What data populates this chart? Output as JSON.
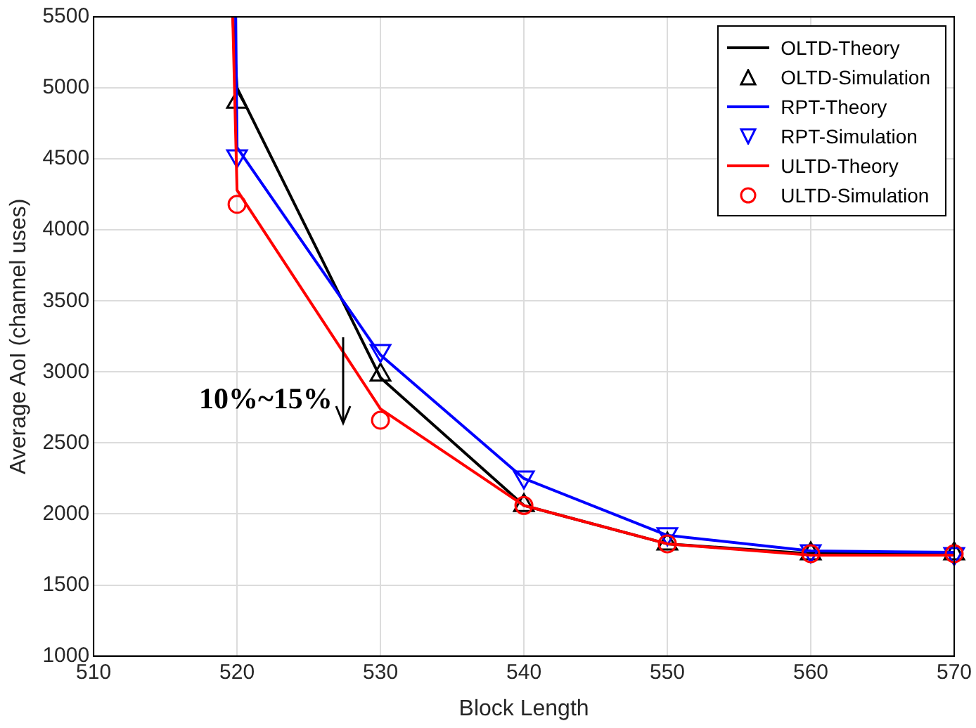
{
  "chart_data": {
    "type": "line",
    "xlabel": "Block Length",
    "ylabel": "Average AoI (channel uses)",
    "xlim": [
      510,
      570
    ],
    "xticks": [
      510,
      520,
      530,
      540,
      550,
      560,
      570
    ],
    "ylim": [
      1000,
      5500
    ],
    "yticks": [
      1000,
      1500,
      2000,
      2500,
      3000,
      3500,
      4000,
      4500,
      5000,
      5500
    ],
    "grid": true,
    "legend": "top right",
    "annotations": [
      "10%~15%"
    ],
    "series": [
      {
        "name": "OLTD-Theory",
        "type": "line",
        "color": "#000000",
        "x": [
          519.7,
          520,
          530,
          540,
          550,
          560,
          570
        ],
        "values": [
          5500,
          5000,
          2960,
          2060,
          1790,
          1720,
          1720
        ]
      },
      {
        "name": "OLTD-Simulation",
        "type": "scatter",
        "marker": "triangle",
        "color": "#000000",
        "x": [
          520,
          530,
          540,
          550,
          560,
          570
        ],
        "values": [
          4900,
          2980,
          2060,
          1790,
          1720,
          1720
        ]
      },
      {
        "name": "RPT-Theory",
        "type": "line",
        "color": "#0000ff",
        "x": [
          519.9,
          520,
          530,
          540,
          550,
          560,
          570
        ],
        "values": [
          5500,
          4580,
          3120,
          2250,
          1850,
          1740,
          1730
        ]
      },
      {
        "name": "RPT-Simulation",
        "type": "scatter",
        "marker": "triangle-down",
        "color": "#0000ff",
        "x": [
          520,
          530,
          540,
          550,
          560,
          570
        ],
        "values": [
          4520,
          3150,
          2260,
          1860,
          1740,
          1720
        ]
      },
      {
        "name": "ULTD-Theory",
        "type": "line",
        "color": "#ff0000",
        "x": [
          519.7,
          520,
          530,
          540,
          550,
          560,
          570
        ],
        "values": [
          5500,
          4280,
          2740,
          2060,
          1790,
          1710,
          1710
        ]
      },
      {
        "name": "ULTD-Simulation",
        "type": "scatter",
        "marker": "circle",
        "color": "#ff0000",
        "x": [
          520,
          530,
          540,
          550,
          560,
          570
        ],
        "values": [
          4180,
          2660,
          2060,
          1790,
          1720,
          1720
        ]
      }
    ]
  }
}
